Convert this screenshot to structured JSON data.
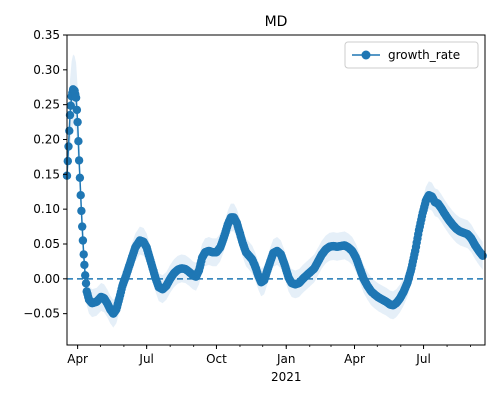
{
  "chart_data": {
    "type": "line",
    "title": "MD",
    "xlabel": "",
    "ylabel": "",
    "x_axis_type": "date",
    "x_range": [
      "2020-03-18",
      "2021-09-20"
    ],
    "ylim": [
      -0.095,
      0.35
    ],
    "yticks": [
      -0.05,
      0.0,
      0.05,
      0.1,
      0.15,
      0.2,
      0.25,
      0.3,
      0.35
    ],
    "ytick_labels": [
      "−0.05",
      "0.00",
      "0.05",
      "0.10",
      "0.15",
      "0.20",
      "0.25",
      "0.30",
      "0.35"
    ],
    "xticks": [
      {
        "date": "2020-04-01",
        "label": "Apr"
      },
      {
        "date": "2020-07-01",
        "label": "Jul"
      },
      {
        "date": "2020-10-01",
        "label": "Oct"
      },
      {
        "date": "2021-01-01",
        "label": "Jan",
        "sublabel": "2021"
      },
      {
        "date": "2021-04-01",
        "label": "Apr"
      },
      {
        "date": "2021-07-01",
        "label": "Jul"
      }
    ],
    "legend": {
      "position": "top-right",
      "entries": [
        "growth_rate"
      ]
    },
    "reference_line": {
      "y": 0.0,
      "style": "dashed"
    },
    "grid": false,
    "series": [
      {
        "name": "growth_rate",
        "color": "#1f77b4",
        "band_color": "#c6dbef",
        "band_halfwidth": 0.02,
        "points": [
          [
            "2020-03-18",
            0.148
          ],
          [
            "2020-03-20",
            0.19
          ],
          [
            "2020-03-22",
            0.235
          ],
          [
            "2020-03-24",
            0.262
          ],
          [
            "2020-03-26",
            0.272
          ],
          [
            "2020-03-28",
            0.27
          ],
          [
            "2020-03-30",
            0.26
          ],
          [
            "2020-04-01",
            0.225
          ],
          [
            "2020-04-03",
            0.17
          ],
          [
            "2020-04-05",
            0.12
          ],
          [
            "2020-04-07",
            0.075
          ],
          [
            "2020-04-09",
            0.035
          ],
          [
            "2020-04-11",
            0.005
          ],
          [
            "2020-04-13",
            -0.018
          ],
          [
            "2020-04-16",
            -0.03
          ],
          [
            "2020-04-20",
            -0.035
          ],
          [
            "2020-04-26",
            -0.033
          ],
          [
            "2020-05-02",
            -0.026
          ],
          [
            "2020-05-06",
            -0.028
          ],
          [
            "2020-05-10",
            -0.035
          ],
          [
            "2020-05-14",
            -0.044
          ],
          [
            "2020-05-18",
            -0.05
          ],
          [
            "2020-05-22",
            -0.044
          ],
          [
            "2020-05-26",
            -0.028
          ],
          [
            "2020-05-30",
            -0.01
          ],
          [
            "2020-06-04",
            0.005
          ],
          [
            "2020-06-10",
            0.025
          ],
          [
            "2020-06-16",
            0.045
          ],
          [
            "2020-06-22",
            0.055
          ],
          [
            "2020-06-27",
            0.053
          ],
          [
            "2020-07-01",
            0.045
          ],
          [
            "2020-07-05",
            0.03
          ],
          [
            "2020-07-09",
            0.015
          ],
          [
            "2020-07-13",
            0.0
          ],
          [
            "2020-07-17",
            -0.012
          ],
          [
            "2020-07-22",
            -0.015
          ],
          [
            "2020-07-27",
            -0.01
          ],
          [
            "2020-08-01",
            0.0
          ],
          [
            "2020-08-06",
            0.008
          ],
          [
            "2020-08-11",
            0.013
          ],
          [
            "2020-08-16",
            0.015
          ],
          [
            "2020-08-21",
            0.014
          ],
          [
            "2020-08-26",
            0.01
          ],
          [
            "2020-08-31",
            0.005
          ],
          [
            "2020-09-04",
            0.003
          ],
          [
            "2020-09-08",
            0.012
          ],
          [
            "2020-09-12",
            0.03
          ],
          [
            "2020-09-16",
            0.038
          ],
          [
            "2020-09-21",
            0.04
          ],
          [
            "2020-09-26",
            0.038
          ],
          [
            "2020-10-01",
            0.038
          ],
          [
            "2020-10-06",
            0.045
          ],
          [
            "2020-10-11",
            0.06
          ],
          [
            "2020-10-16",
            0.078
          ],
          [
            "2020-10-20",
            0.088
          ],
          [
            "2020-10-24",
            0.088
          ],
          [
            "2020-10-28",
            0.08
          ],
          [
            "2020-11-01",
            0.065
          ],
          [
            "2020-11-05",
            0.05
          ],
          [
            "2020-11-09",
            0.038
          ],
          [
            "2020-11-13",
            0.033
          ],
          [
            "2020-11-17",
            0.028
          ],
          [
            "2020-11-21",
            0.018
          ],
          [
            "2020-11-25",
            0.005
          ],
          [
            "2020-11-29",
            -0.005
          ],
          [
            "2020-12-03",
            -0.002
          ],
          [
            "2020-12-07",
            0.012
          ],
          [
            "2020-12-11",
            0.025
          ],
          [
            "2020-12-15",
            0.037
          ],
          [
            "2020-12-20",
            0.04
          ],
          [
            "2020-12-25",
            0.035
          ],
          [
            "2020-12-30",
            0.02
          ],
          [
            "2021-01-04",
            0.002
          ],
          [
            "2021-01-08",
            -0.006
          ],
          [
            "2021-01-13",
            -0.008
          ],
          [
            "2021-01-18",
            -0.006
          ],
          [
            "2021-01-23",
            0.0
          ],
          [
            "2021-01-28",
            0.005
          ],
          [
            "2021-02-02",
            0.01
          ],
          [
            "2021-02-07",
            0.015
          ],
          [
            "2021-02-12",
            0.025
          ],
          [
            "2021-02-17",
            0.035
          ],
          [
            "2021-02-22",
            0.042
          ],
          [
            "2021-02-27",
            0.046
          ],
          [
            "2021-03-04",
            0.047
          ],
          [
            "2021-03-09",
            0.046
          ],
          [
            "2021-03-14",
            0.047
          ],
          [
            "2021-03-19",
            0.048
          ],
          [
            "2021-03-24",
            0.045
          ],
          [
            "2021-03-29",
            0.04
          ],
          [
            "2021-04-03",
            0.03
          ],
          [
            "2021-04-08",
            0.015
          ],
          [
            "2021-04-13",
            0.0
          ],
          [
            "2021-04-18",
            -0.01
          ],
          [
            "2021-04-23",
            -0.018
          ],
          [
            "2021-04-28",
            -0.023
          ],
          [
            "2021-05-03",
            -0.027
          ],
          [
            "2021-05-08",
            -0.03
          ],
          [
            "2021-05-13",
            -0.033
          ],
          [
            "2021-05-18",
            -0.037
          ],
          [
            "2021-05-22",
            -0.038
          ],
          [
            "2021-05-26",
            -0.035
          ],
          [
            "2021-05-31",
            -0.028
          ],
          [
            "2021-06-05",
            -0.018
          ],
          [
            "2021-06-10",
            -0.005
          ],
          [
            "2021-06-15",
            0.015
          ],
          [
            "2021-06-20",
            0.04
          ],
          [
            "2021-06-25",
            0.07
          ],
          [
            "2021-06-30",
            0.095
          ],
          [
            "2021-07-04",
            0.112
          ],
          [
            "2021-07-08",
            0.12
          ],
          [
            "2021-07-12",
            0.118
          ],
          [
            "2021-07-16",
            0.11
          ],
          [
            "2021-07-20",
            0.108
          ],
          [
            "2021-07-24",
            0.102
          ],
          [
            "2021-07-29",
            0.093
          ],
          [
            "2021-08-03",
            0.085
          ],
          [
            "2021-08-08",
            0.078
          ],
          [
            "2021-08-13",
            0.072
          ],
          [
            "2021-08-18",
            0.068
          ],
          [
            "2021-08-23",
            0.066
          ],
          [
            "2021-08-28",
            0.064
          ],
          [
            "2021-09-02",
            0.058
          ],
          [
            "2021-09-07",
            0.048
          ],
          [
            "2021-09-12",
            0.04
          ],
          [
            "2021-09-17",
            0.033
          ]
        ]
      }
    ]
  }
}
